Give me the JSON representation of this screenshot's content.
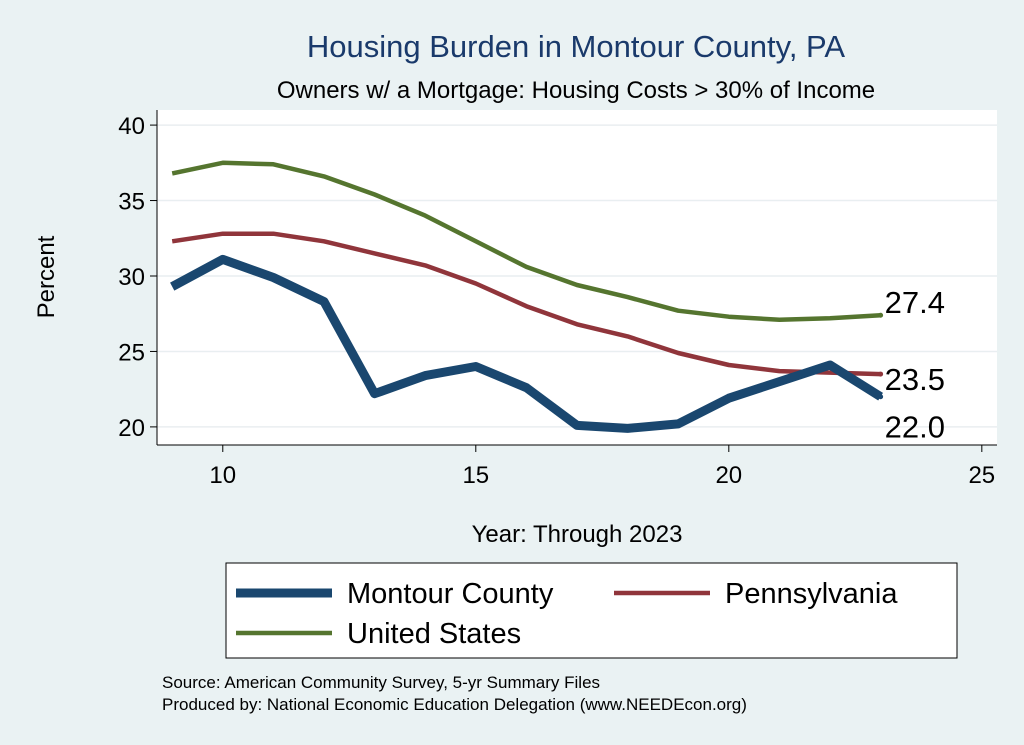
{
  "chart_data": {
    "type": "line",
    "title": "Housing Burden in Montour County, PA",
    "subtitle": "Owners w/ a Mortgage: Housing Costs > 30% of Income",
    "xlabel": "Year: Through 2023",
    "ylabel": "Percent",
    "xlim": [
      8.7,
      25.3
    ],
    "ylim": [
      18.8,
      41.0
    ],
    "xticks": [
      10,
      15,
      20,
      25
    ],
    "yticks": [
      20,
      25,
      30,
      35,
      40
    ],
    "grid": true,
    "legend_position": "bottom",
    "x": [
      9,
      10,
      11,
      12,
      13,
      14,
      15,
      16,
      17,
      18,
      19,
      20,
      21,
      22,
      23
    ],
    "series": [
      {
        "name": "Montour County",
        "color": "#1a476f",
        "values": [
          29.3,
          31.1,
          29.9,
          28.3,
          22.2,
          23.4,
          24.0,
          22.6,
          20.1,
          19.9,
          20.2,
          21.9,
          23.0,
          24.1,
          22.0
        ],
        "end_label": "22.0"
      },
      {
        "name": "Pennsylvania",
        "color": "#90353b",
        "values": [
          32.3,
          32.8,
          32.8,
          32.3,
          31.5,
          30.7,
          29.5,
          28.0,
          26.8,
          26.0,
          24.9,
          24.1,
          23.7,
          23.6,
          23.5
        ],
        "end_label": "23.5"
      },
      {
        "name": "United States",
        "color": "#55752f",
        "values": [
          36.8,
          37.5,
          37.4,
          36.6,
          35.4,
          34.0,
          32.3,
          30.6,
          29.4,
          28.6,
          27.7,
          27.3,
          27.1,
          27.2,
          27.4
        ],
        "end_label": "27.4"
      }
    ],
    "source_lines": [
      "Source: American Community Survey, 5-yr Summary Files",
      "Produced by: National Economic Education Delegation (www.NEEDEcon.org)"
    ]
  }
}
